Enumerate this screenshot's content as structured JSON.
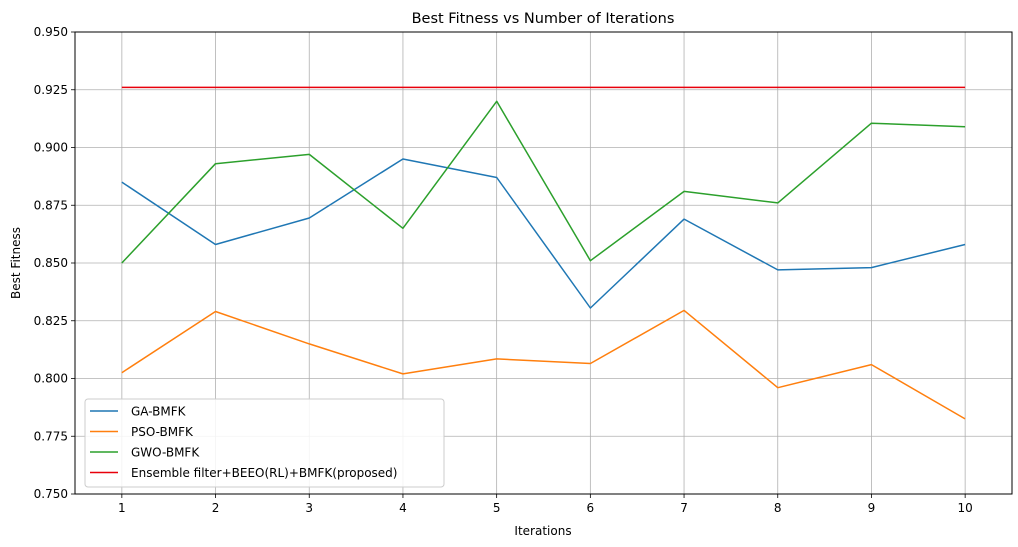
{
  "chart_data": {
    "type": "line",
    "title": "Best Fitness vs Number of Iterations",
    "xlabel": "Iterations",
    "ylabel": "Best Fitness",
    "x": [
      1,
      2,
      3,
      4,
      5,
      6,
      7,
      8,
      9,
      10
    ],
    "xlim": [
      0.5,
      10.5
    ],
    "ylim": [
      0.75,
      0.95
    ],
    "yticks": [
      "0.750",
      "0.775",
      "0.800",
      "0.825",
      "0.850",
      "0.875",
      "0.900",
      "0.925",
      "0.950"
    ],
    "grid": true,
    "legend_position": "lower-left",
    "series": [
      {
        "name": "GA-BMFK",
        "color": "#1f77b4",
        "values": [
          0.885,
          0.858,
          0.8695,
          0.895,
          0.887,
          0.8305,
          0.869,
          0.847,
          0.848,
          0.858
        ]
      },
      {
        "name": "PSO-BMFK",
        "color": "#ff7f0e",
        "values": [
          0.8025,
          0.829,
          0.815,
          0.802,
          0.8085,
          0.8065,
          0.8295,
          0.796,
          0.806,
          0.7825
        ]
      },
      {
        "name": "GWO-BMFK",
        "color": "#2ca02c",
        "values": [
          0.85,
          0.893,
          0.897,
          0.865,
          0.92,
          0.851,
          0.881,
          0.876,
          0.9105,
          0.909
        ]
      },
      {
        "name": "Ensemble filter+BEEO(RL)+BMFK(proposed)",
        "color": "#e8000b",
        "values": [
          0.926,
          0.926,
          0.926,
          0.926,
          0.926,
          0.926,
          0.926,
          0.926,
          0.926,
          0.926
        ]
      }
    ]
  }
}
